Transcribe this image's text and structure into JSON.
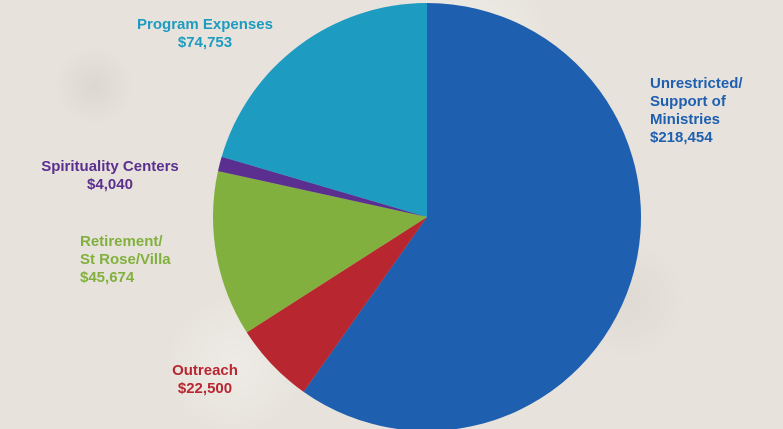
{
  "colors": {
    "unrestricted": "#1e5fb0",
    "outreach": "#b8272f",
    "retirement": "#82b03f",
    "spirituality": "#5b2f8f",
    "program": "#1d9bc0"
  },
  "chart_data": {
    "type": "pie",
    "start_angle_deg": 0,
    "direction": "clockwise",
    "slices": [
      {
        "key": "unrestricted",
        "label_lines": [
          "Unrestricted/",
          "Support of",
          "Ministries"
        ],
        "value_label": "$218,454",
        "value": 218454,
        "color": "#1e5fb0"
      },
      {
        "key": "outreach",
        "label_lines": [
          "Outreach"
        ],
        "value_label": "$22,500",
        "value": 22500,
        "color": "#b8272f"
      },
      {
        "key": "retirement",
        "label_lines": [
          "Retirement/",
          "St Rose/Villa"
        ],
        "value_label": "$45,674",
        "value": 45674,
        "color": "#82b03f"
      },
      {
        "key": "spirituality",
        "label_lines": [
          "Spirituality Centers"
        ],
        "value_label": "$4,040",
        "value": 4040,
        "color": "#5b2f8f"
      },
      {
        "key": "program",
        "label_lines": [
          "Program Expenses"
        ],
        "value_label": "$74,753",
        "value": 74753,
        "color": "#1d9bc0"
      }
    ]
  }
}
